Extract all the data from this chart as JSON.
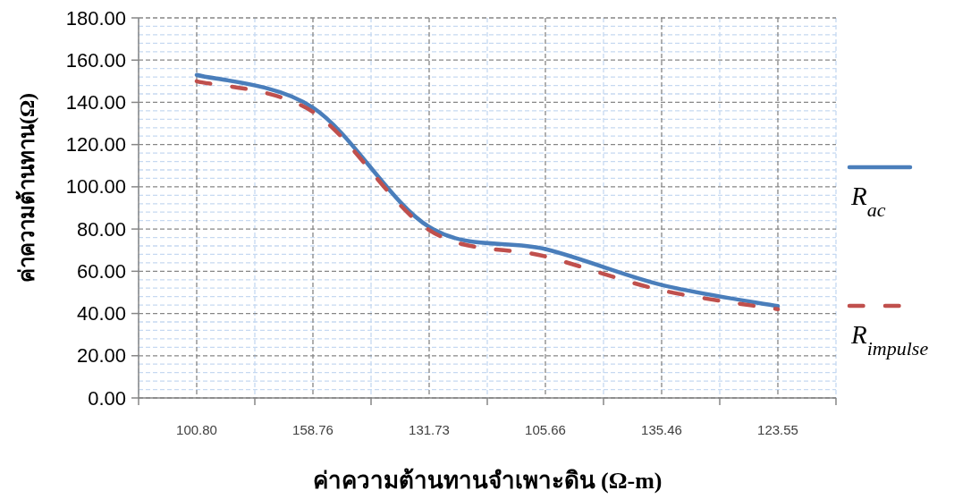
{
  "chart_data": {
    "type": "line",
    "xlabel": "ค่าความต้านทานจำเพาะดิน (Ω-m)",
    "ylabel": "ค่าความต้านทาน(Ω)",
    "categories": [
      "100.80",
      "158.76",
      "131.73",
      "105.66",
      "135.46",
      "123.55"
    ],
    "series": [
      {
        "name": "R$_{ac}$",
        "color": "#4a7ebb",
        "line_style": "solid",
        "values": [
          153,
          137.5,
          81,
          70.5,
          53.5,
          43.5
        ]
      },
      {
        "name": "R$_{impulse}$",
        "color": "#c0504d",
        "line_style": "dashed",
        "values": [
          150,
          135.5,
          79.5,
          67,
          51,
          42
        ]
      }
    ],
    "ylim": [
      0,
      180
    ],
    "yticks": [
      {
        "value": 0,
        "label": "0.00"
      },
      {
        "value": 4,
        "label": null
      },
      {
        "value": 8,
        "label": null
      },
      {
        "value": 12,
        "label": null
      },
      {
        "value": 16,
        "label": null
      },
      {
        "value": 20,
        "label": "20.00"
      },
      {
        "value": 24,
        "label": null
      },
      {
        "value": 28,
        "label": null
      },
      {
        "value": 32,
        "label": null
      },
      {
        "value": 36,
        "label": null
      },
      {
        "value": 40,
        "label": "40.00"
      },
      {
        "value": 44,
        "label": null
      },
      {
        "value": 48,
        "label": null
      },
      {
        "value": 52,
        "label": null
      },
      {
        "value": 56,
        "label": null
      },
      {
        "value": 60,
        "label": "60.00"
      },
      {
        "value": 64,
        "label": null
      },
      {
        "value": 68,
        "label": null
      },
      {
        "value": 72,
        "label": null
      },
      {
        "value": 76,
        "label": null
      },
      {
        "value": 80,
        "label": "80.00"
      },
      {
        "value": 84,
        "label": null
      },
      {
        "value": 88,
        "label": null
      },
      {
        "value": 92,
        "label": null
      },
      {
        "value": 96,
        "label": null
      },
      {
        "value": 100,
        "label": "100.00"
      },
      {
        "value": 104,
        "label": null
      },
      {
        "value": 108,
        "label": null
      },
      {
        "value": 112,
        "label": null
      },
      {
        "value": 116,
        "label": null
      },
      {
        "value": 120,
        "label": "120.00"
      },
      {
        "value": 124,
        "label": null
      },
      {
        "value": 128,
        "label": null
      },
      {
        "value": 132,
        "label": null
      },
      {
        "value": 136,
        "label": null
      },
      {
        "value": 140,
        "label": "140.00"
      },
      {
        "value": 144,
        "label": null
      },
      {
        "value": 148,
        "label": null
      },
      {
        "value": 152,
        "label": null
      },
      {
        "value": 156,
        "label": null
      },
      {
        "value": 160,
        "label": "160.00"
      },
      {
        "value": 164,
        "label": null
      },
      {
        "value": 168,
        "label": null
      },
      {
        "value": 172,
        "label": null
      },
      {
        "value": 176,
        "label": null
      },
      {
        "value": 180,
        "label": "180.00"
      }
    ],
    "grid": true,
    "legend": "right"
  }
}
